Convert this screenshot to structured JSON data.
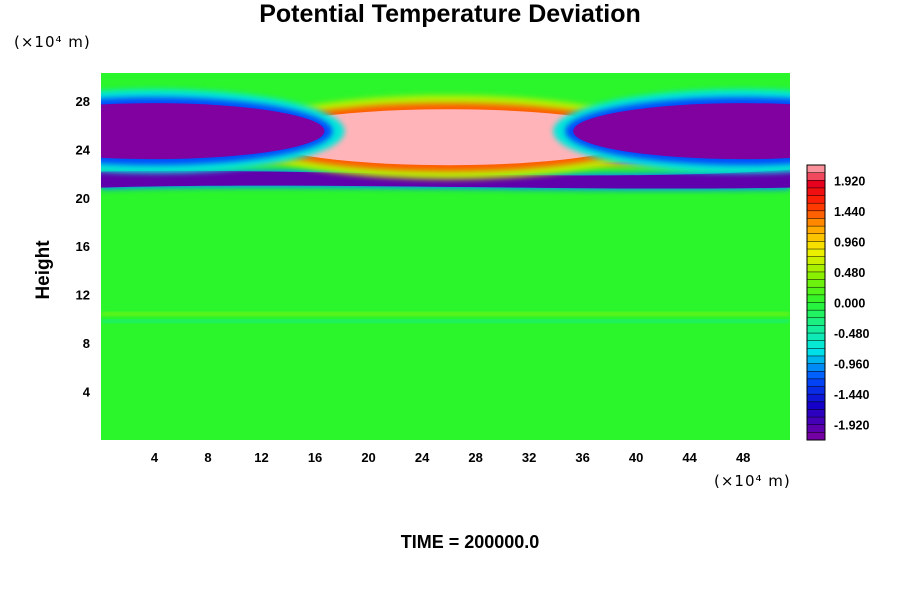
{
  "chart_data": {
    "type": "heatmap",
    "title": "Potential Temperature Deviation",
    "xlabel": "",
    "ylabel": "Height",
    "x_unit": "(×10⁴ m)",
    "y_unit": "(×10⁴ m)",
    "xlim": [
      0,
      51.5
    ],
    "ylim": [
      0,
      30.3
    ],
    "x_ticks": [
      4,
      8,
      12,
      16,
      20,
      24,
      28,
      32,
      36,
      40,
      44,
      48
    ],
    "y_ticks": [
      4,
      8,
      12,
      16,
      20,
      24,
      28
    ],
    "colorbar": {
      "min": -2.16,
      "max": 2.16,
      "tick_values": [
        1.92,
        1.44,
        0.96,
        0.48,
        0.0,
        -0.48,
        -0.96,
        -1.44,
        -1.92
      ],
      "tick_labels": [
        "1.920",
        "1.440",
        "0.960",
        "0.480",
        "0.000",
        "-0.480",
        "-0.960",
        "-1.440",
        "-1.920"
      ]
    },
    "features": [
      {
        "type": "band",
        "y": 23.5,
        "value": 2.0
      },
      {
        "type": "band",
        "y": 21.5,
        "value": -2.0
      },
      {
        "type": "blob",
        "x": 26,
        "y": 25,
        "value": 2.2
      },
      {
        "type": "blob",
        "x": 4,
        "y": 25.5,
        "value": -2.2
      },
      {
        "type": "blob",
        "x": 48,
        "y": 25.5,
        "value": -2.2
      },
      {
        "type": "line",
        "y": 10.4,
        "value": 0.6
      },
      {
        "type": "line",
        "y": 9.8,
        "value": -0.6
      }
    ],
    "background_value": 0.0
  },
  "footer": {
    "time_label": "TIME",
    "time_value": "200000.0"
  }
}
